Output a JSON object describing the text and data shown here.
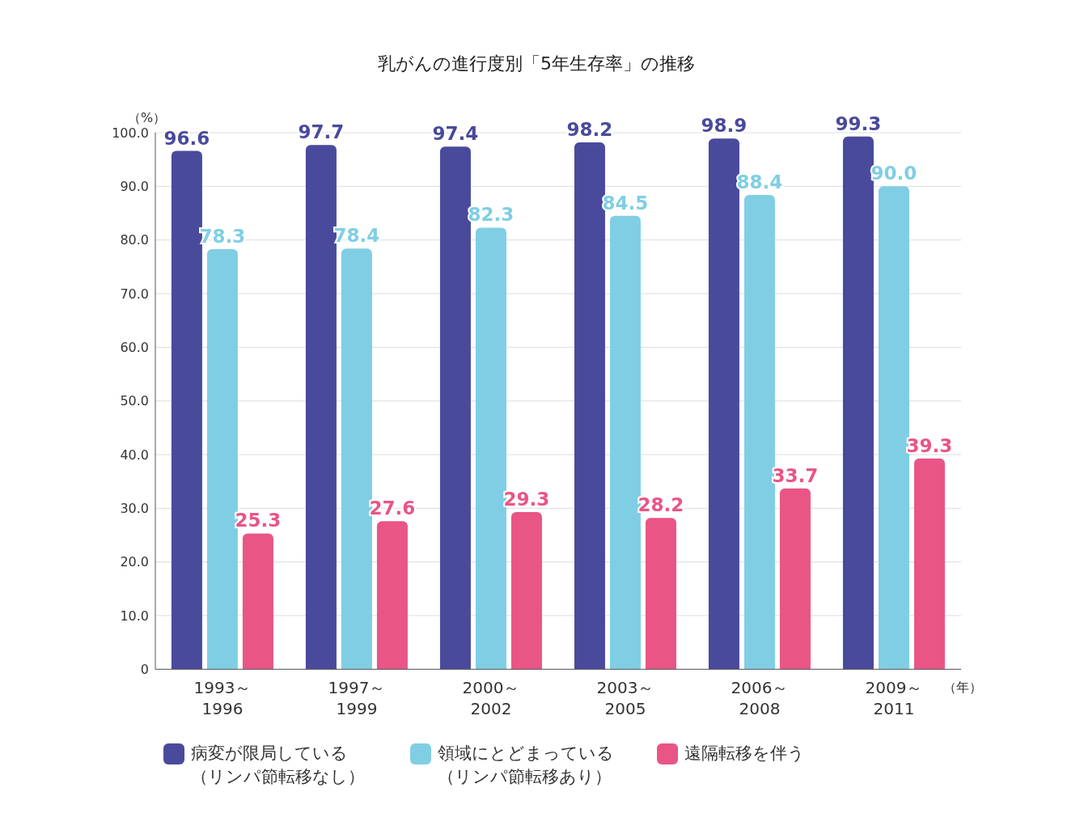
{
  "chart_data": {
    "type": "bar",
    "title": "乳がんの進行度別「5年生存率」の推移",
    "ylabel": "（%）",
    "xlabel": "（年）",
    "categories": [
      "1993～\n1996",
      "1997～\n1999",
      "2000～\n2002",
      "2003～\n2005",
      "2006～\n2008",
      "2009～\n2011"
    ],
    "series": [
      {
        "name": "病変が限局している（リンパ節転移なし）",
        "color": "#4a4a9c",
        "values": [
          96.6,
          97.7,
          97.4,
          98.2,
          98.9,
          99.3
        ],
        "value_labels": [
          "96.6",
          "97.7",
          "97.4",
          "98.2",
          "98.9",
          "99.3"
        ]
      },
      {
        "name": "領域にとどまっている（リンパ節転移あり）",
        "color": "#80cee4",
        "values": [
          78.3,
          78.4,
          82.3,
          84.5,
          88.4,
          90.0
        ],
        "value_labels": [
          "78.3",
          "78.4",
          "82.3",
          "84.5",
          "88.4",
          "90.0"
        ]
      },
      {
        "name": "遠隔転移を伴う",
        "color": "#e95585",
        "values": [
          25.3,
          27.6,
          29.3,
          28.2,
          33.7,
          39.3
        ],
        "value_labels": [
          "25.3",
          "27.6",
          "29.3",
          "28.2",
          "33.7",
          "39.3"
        ]
      }
    ],
    "ylim": [
      0,
      100
    ],
    "yticks": [
      {
        "value": 0,
        "label": "0"
      },
      {
        "value": 10,
        "label": "10.0"
      },
      {
        "value": 20,
        "label": "20.0"
      },
      {
        "value": 30,
        "label": "30.0"
      },
      {
        "value": 40,
        "label": "40.0"
      },
      {
        "value": 50,
        "label": "50.0"
      },
      {
        "value": 60,
        "label": "60.0"
      },
      {
        "value": 70,
        "label": "70.0"
      },
      {
        "value": 80,
        "label": "80.0"
      },
      {
        "value": 90,
        "label": "90.0"
      },
      {
        "value": 100,
        "label": "100.0"
      }
    ],
    "grid": "y",
    "legend": "bottom"
  }
}
